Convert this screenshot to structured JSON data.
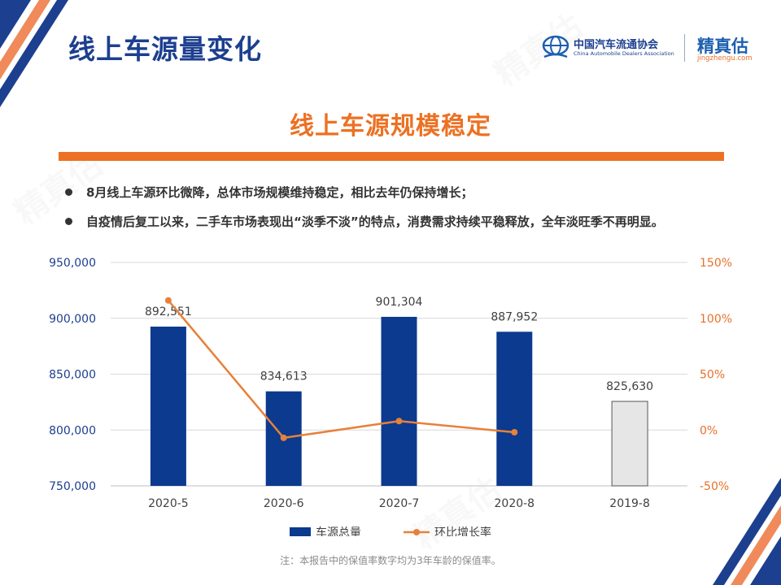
{
  "header": {
    "title": "线上车源量变化",
    "logos": {
      "cada_cn": "中国汽车流通协会",
      "cada_en": "China Automobile Dealers Association",
      "jzg_cn": "精真估",
      "jzg_en": "jingzhengu.com"
    }
  },
  "subtitle": "线上车源规模稳定",
  "bullets": [
    "8月线上车源环比微降，总体市场规模维持稳定，相比去年仍保持增长；",
    "自疫情后复工以来，二手车市场表现出“淡季不淡”的特点，消费需求持续平稳释放，全年淡旺季不再明显。"
  ],
  "chart_data": {
    "type": "bar",
    "categories": [
      "2020-5",
      "2020-6",
      "2020-7",
      "2020-8",
      "2019-8"
    ],
    "series": [
      {
        "name": "车源总量",
        "type": "bar",
        "axis": "left",
        "values": [
          892551,
          834613,
          901304,
          887952,
          825630
        ],
        "data_labels": [
          "892,551",
          "834,613",
          "901,304",
          "887,952",
          "825,630"
        ],
        "colors": [
          "#0b3a8f",
          "#0b3a8f",
          "#0b3a8f",
          "#0b3a8f",
          "#e6e6e6"
        ]
      },
      {
        "name": "环比增长率",
        "type": "line",
        "axis": "right",
        "values": [
          116,
          -7,
          8,
          -2,
          null
        ],
        "color": "#e8803a"
      }
    ],
    "y_left": {
      "min": 750000,
      "max": 950000,
      "ticks": [
        750000,
        800000,
        850000,
        900000,
        950000
      ],
      "tick_labels": [
        "750,000",
        "800,000",
        "850,000",
        "900,000",
        "950,000"
      ],
      "color": "#1d3f8f"
    },
    "y_right": {
      "min": -50,
      "max": 150,
      "ticks": [
        -50,
        0,
        50,
        100,
        150
      ],
      "tick_labels": [
        "-50%",
        "0%",
        "50%",
        "100%",
        "150%"
      ],
      "color": "#e8702a"
    },
    "grid": true,
    "legend_position": "bottom"
  },
  "note": "注：本报告中的保值率数字均为3年车龄的保值率。"
}
